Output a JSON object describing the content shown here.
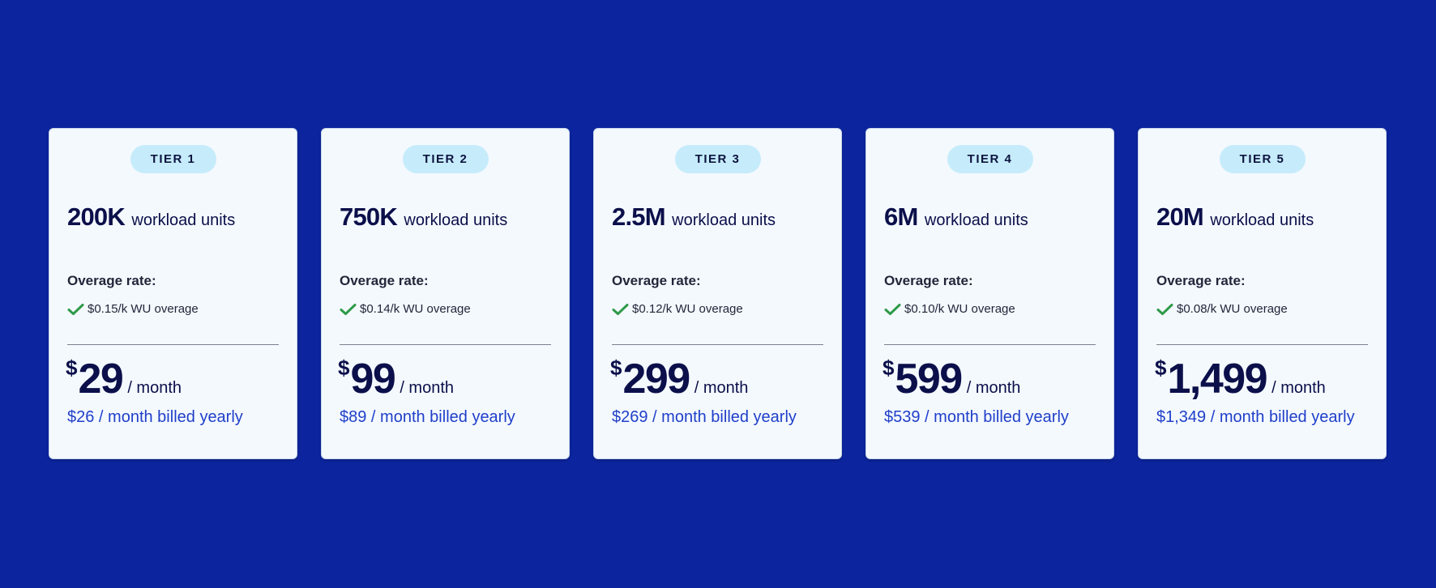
{
  "colors": {
    "background": "#0c259e",
    "card": "#f4f9fe",
    "pill": "#c6ecfb",
    "heading": "#0b0f4a",
    "accent": "#1f3fc9",
    "check": "#2e9a48"
  },
  "tiers": [
    {
      "label": "TIER 1",
      "units_value": "200K",
      "units_text": "workload units",
      "overage_label": "Overage rate:",
      "overage_icon": "checkmark-icon",
      "overage_rate": "$0.15/k WU overage",
      "currency": "$",
      "price": "29",
      "period": "/ month",
      "yearly": "$26 / month billed yearly"
    },
    {
      "label": "TIER 2",
      "units_value": "750K",
      "units_text": "workload units",
      "overage_label": "Overage rate:",
      "overage_icon": "checkmark-icon",
      "overage_rate": "$0.14/k WU overage",
      "currency": "$",
      "price": "99",
      "period": "/ month",
      "yearly": "$89 / month billed yearly"
    },
    {
      "label": "TIER 3",
      "units_value": "2.5M",
      "units_text": "workload units",
      "overage_label": "Overage rate:",
      "overage_icon": "checkmark-icon",
      "overage_rate": "$0.12/k WU overage",
      "currency": "$",
      "price": "299",
      "period": "/ month",
      "yearly": "$269 / month billed yearly"
    },
    {
      "label": "TIER 4",
      "units_value": "6M",
      "units_text": "workload units",
      "overage_label": "Overage rate:",
      "overage_icon": "checkmark-icon",
      "overage_rate": "$0.10/k WU overage",
      "currency": "$",
      "price": "599",
      "period": "/ month",
      "yearly": "$539 / month billed yearly"
    },
    {
      "label": "TIER 5",
      "units_value": "20M",
      "units_text": "workload units",
      "overage_label": "Overage rate:",
      "overage_icon": "checkmark-icon",
      "overage_rate": "$0.08/k WU overage",
      "currency": "$",
      "price": "1,499",
      "period": "/ month",
      "yearly": "$1,349 / month billed yearly"
    }
  ]
}
